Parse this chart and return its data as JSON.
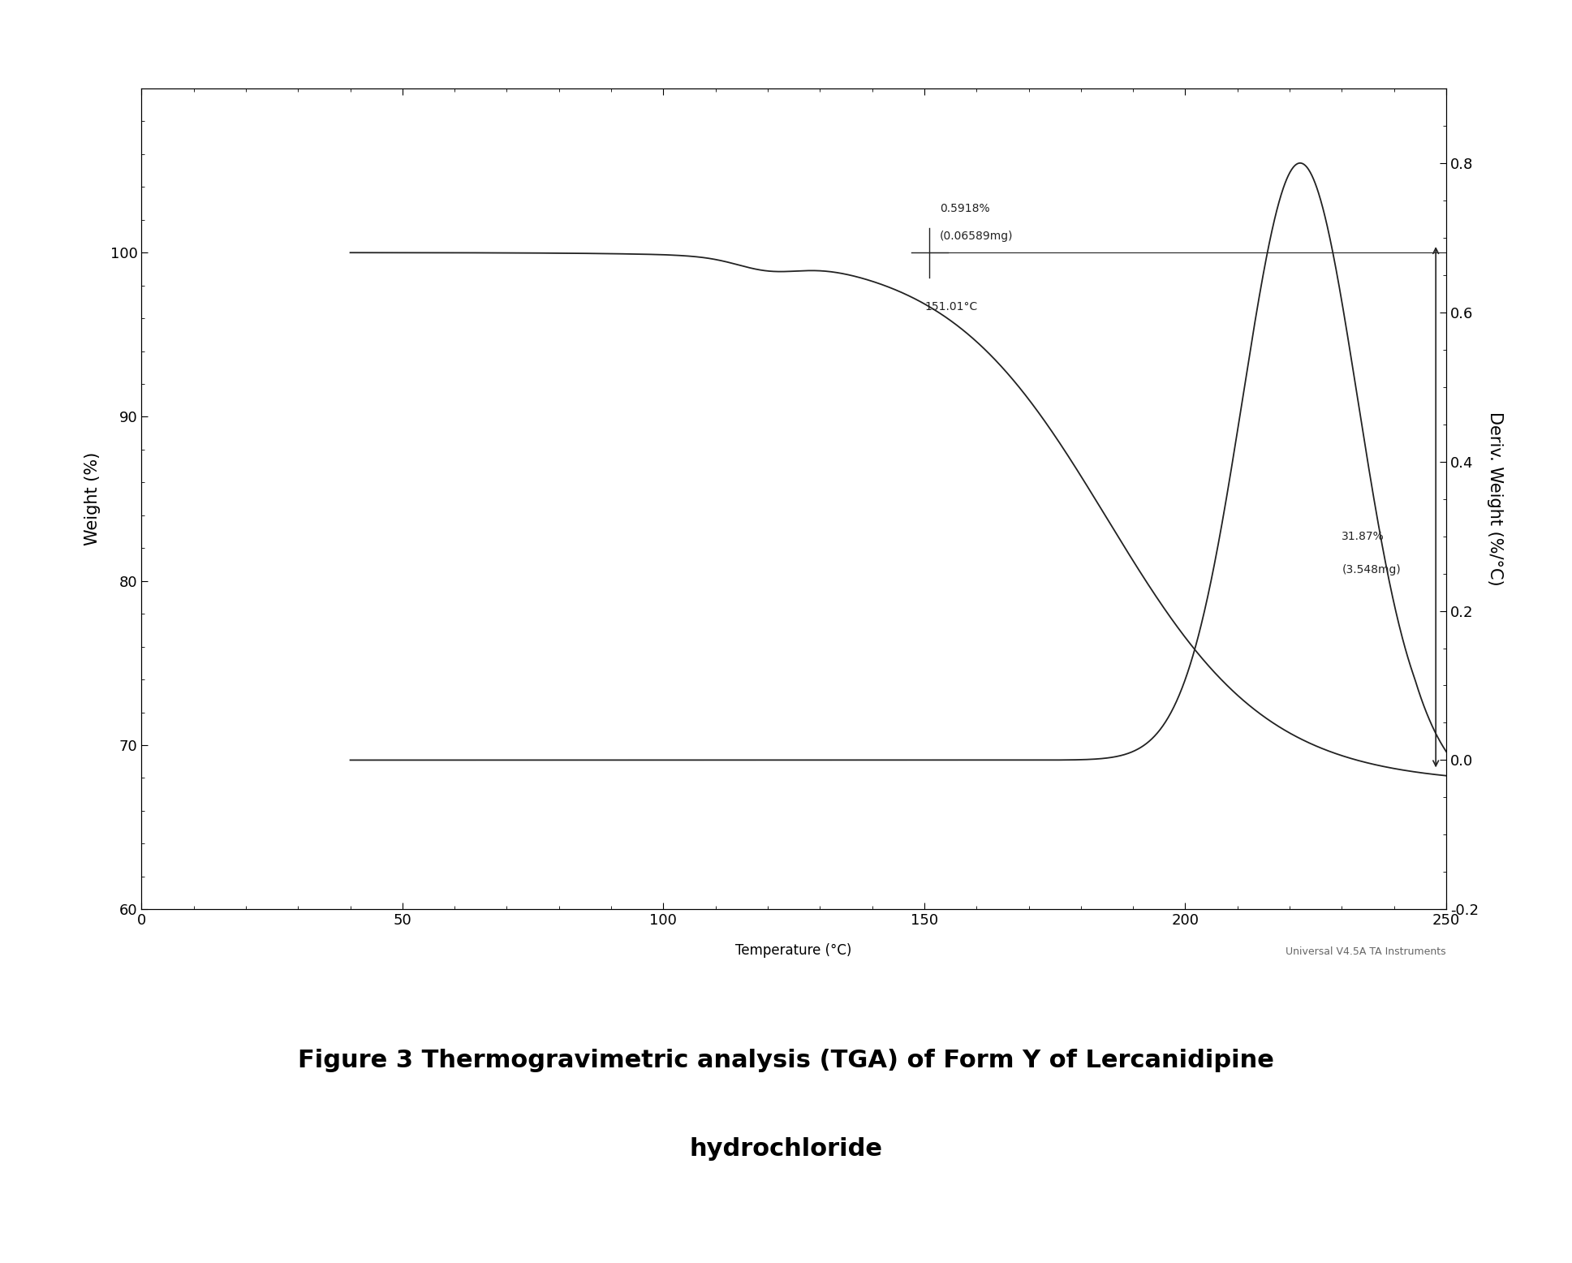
{
  "ylabel_left": "Weight (%)",
  "ylabel_right": "Deriv. Weight (%/°C)",
  "xlim": [
    0,
    250
  ],
  "ylim_left": [
    60,
    110
  ],
  "ylim_right": [
    -0.2,
    0.9
  ],
  "yticks_left": [
    60,
    70,
    80,
    90,
    100
  ],
  "yticks_right": [
    -0.2,
    0.0,
    0.2,
    0.4,
    0.6,
    0.8
  ],
  "xticks": [
    0,
    50,
    100,
    150,
    200,
    250
  ],
  "line_color": "#222222",
  "fig_bg": "#ffffff",
  "plot_bg": "#ffffff",
  "caption_line1": "Figure 3 Thermogravimetric analysis (TGA) of Form Y of Lercanidipine",
  "caption_line2": "hydrochloride"
}
